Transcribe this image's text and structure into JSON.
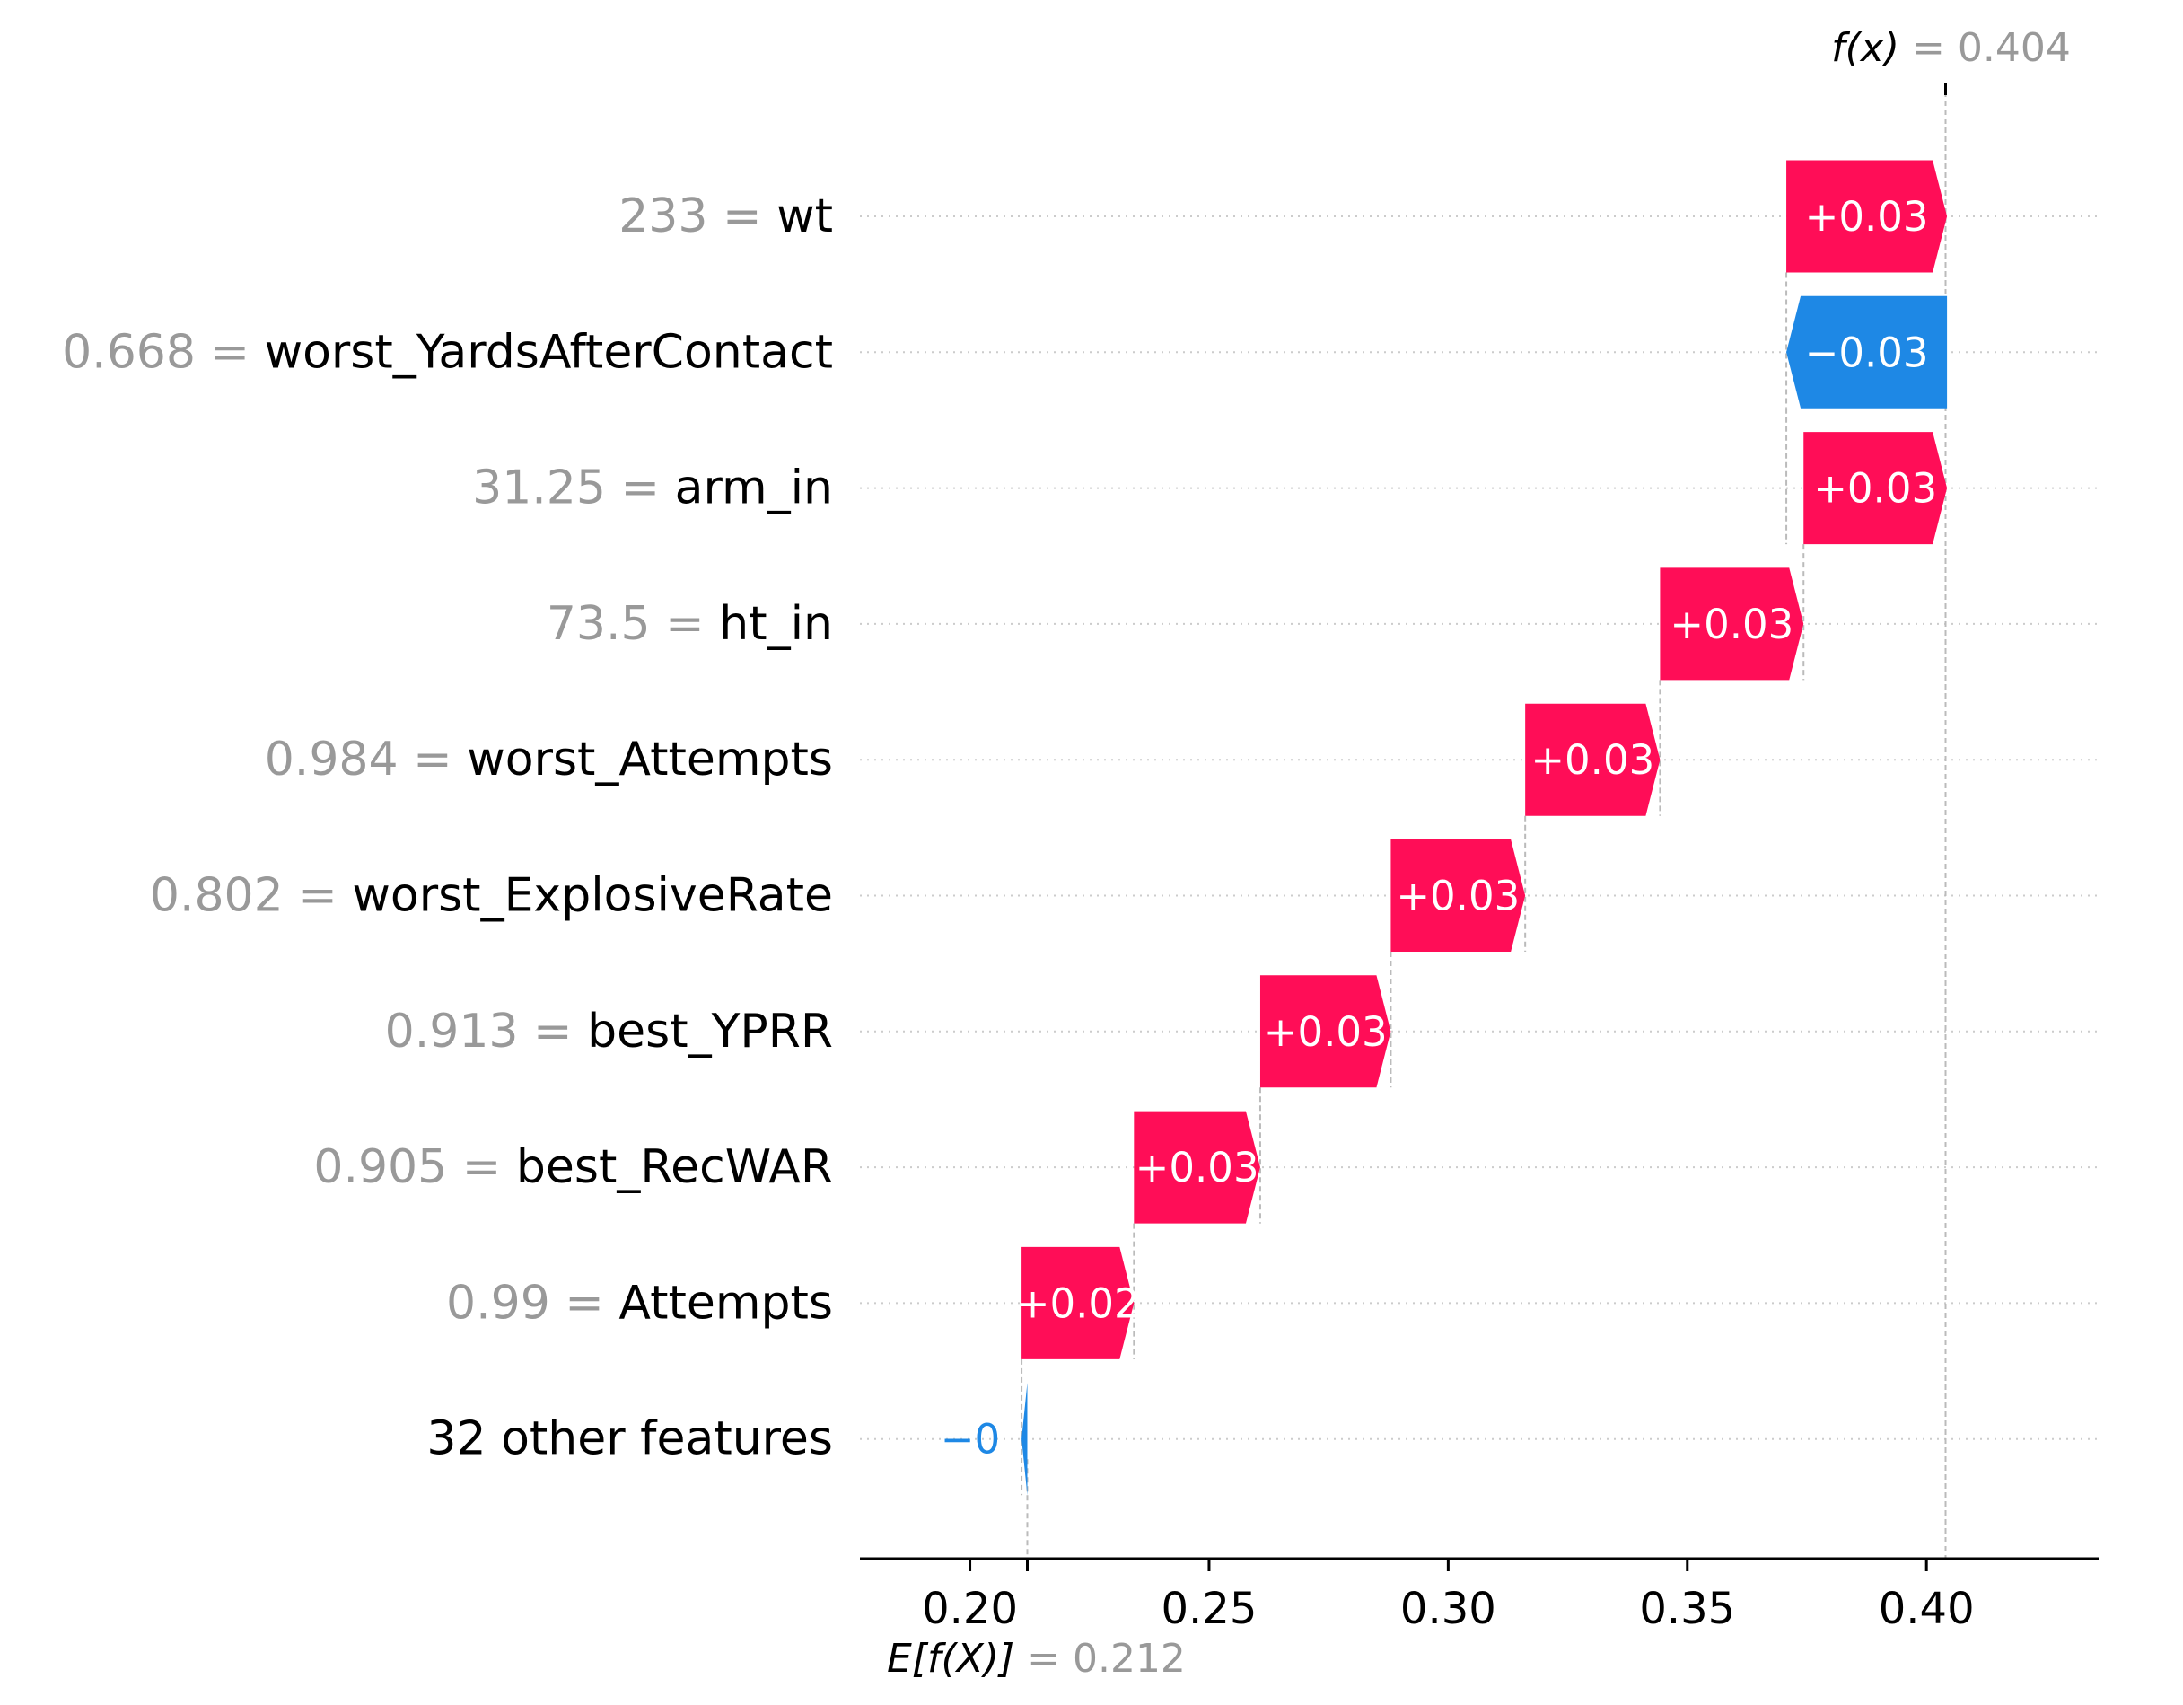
{
  "chart_data": {
    "type": "waterfall",
    "base_value": 0.212,
    "output_value": 0.404,
    "fx_label": "f(x)",
    "fx_value_text": "= 0.404",
    "ex_label": "E[f(X)]",
    "ex_value_text": "= 0.212",
    "xlim": [
      0.177,
      0.436
    ],
    "xticks": [
      {
        "value": 0.2,
        "label": "0.20"
      },
      {
        "value": 0.25,
        "label": "0.25"
      },
      {
        "value": 0.3,
        "label": "0.30"
      },
      {
        "value": 0.35,
        "label": "0.35"
      },
      {
        "value": 0.4,
        "label": "0.40"
      }
    ],
    "features": [
      {
        "value": "233",
        "name": "wt",
        "start": 0.3707,
        "end": 0.4043,
        "label": "+0.03"
      },
      {
        "value": "0.668",
        "name": "worst_YardsAfterContact",
        "start": 0.4043,
        "end": 0.3707,
        "label": "−0.03"
      },
      {
        "value": "31.25",
        "name": "arm_in",
        "start": 0.3743,
        "end": 0.4043,
        "label": "+0.03"
      },
      {
        "value": "73.5",
        "name": "ht_in",
        "start": 0.3443,
        "end": 0.3743,
        "label": "+0.03"
      },
      {
        "value": "0.984",
        "name": "worst_Attempts",
        "start": 0.3161,
        "end": 0.3443,
        "label": "+0.03"
      },
      {
        "value": "0.802",
        "name": "worst_ExplosiveRate",
        "start": 0.288,
        "end": 0.3161,
        "label": "+0.03"
      },
      {
        "value": "0.913",
        "name": "best_YPRR",
        "start": 0.2607,
        "end": 0.288,
        "label": "+0.03"
      },
      {
        "value": "0.905",
        "name": "best_RecWAR",
        "start": 0.2343,
        "end": 0.2607,
        "label": "+0.03"
      },
      {
        "value": "0.99",
        "name": "Attempts",
        "start": 0.2108,
        "end": 0.2343,
        "label": "+0.02"
      },
      {
        "value": "",
        "name": "32 other features",
        "start": 0.212,
        "end": 0.2108,
        "label": "−0"
      }
    ],
    "colors": {
      "positive": "#ff0d57",
      "negative": "#1e88e5",
      "value_gray": "#999999",
      "connector": "#bbbbbb"
    }
  }
}
